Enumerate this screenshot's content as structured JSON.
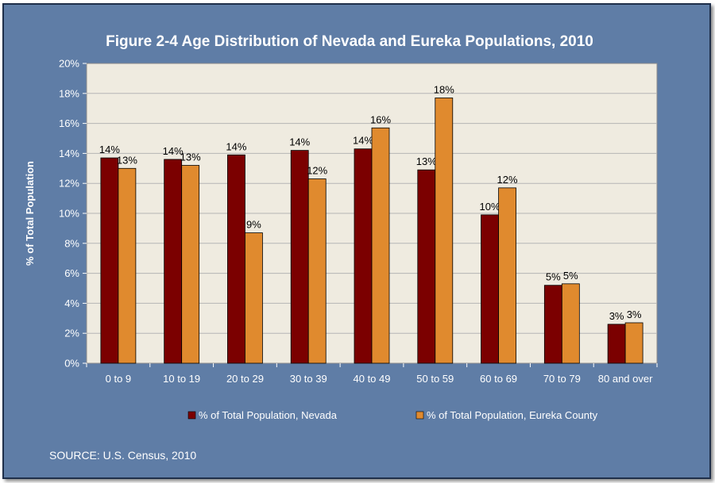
{
  "chart_data": {
    "type": "bar",
    "title": "Figure 2-4 Age Distribution of Nevada and Eureka Populations, 2010",
    "xlabel": "",
    "ylabel": "% of Total Population",
    "categories": [
      "0 to 9",
      "10 to 19",
      "20 to 29",
      "30 to 39",
      "40 to 49",
      "50 to 59",
      "60 to 69",
      "70 to 79",
      "80 and over"
    ],
    "series": [
      {
        "name": "% of Total Population, Nevada",
        "color": "#7b0000",
        "values": [
          13.7,
          13.6,
          13.9,
          14.2,
          14.3,
          12.9,
          9.9,
          5.2,
          2.6
        ],
        "labels": [
          "14%",
          "14%",
          "14%",
          "14%",
          "14%",
          "13%",
          "10%",
          "5%",
          "3%"
        ]
      },
      {
        "name": "% of Total Population, Eureka County",
        "color": "#e08a2e",
        "values": [
          13.0,
          13.2,
          8.7,
          12.3,
          15.7,
          17.7,
          11.7,
          5.3,
          2.7
        ],
        "labels": [
          "13%",
          "13%",
          "9%",
          "12%",
          "16%",
          "18%",
          "12%",
          "5%",
          "3%"
        ]
      }
    ],
    "ylim": [
      0,
      20
    ],
    "yticks": [
      "0%",
      "2%",
      "4%",
      "6%",
      "8%",
      "10%",
      "12%",
      "14%",
      "16%",
      "18%",
      "20%"
    ],
    "grid": true,
    "legend_position": "bottom",
    "plot_background": "#efebe0"
  },
  "source_note": "SOURCE: U.S. Census, 2010"
}
